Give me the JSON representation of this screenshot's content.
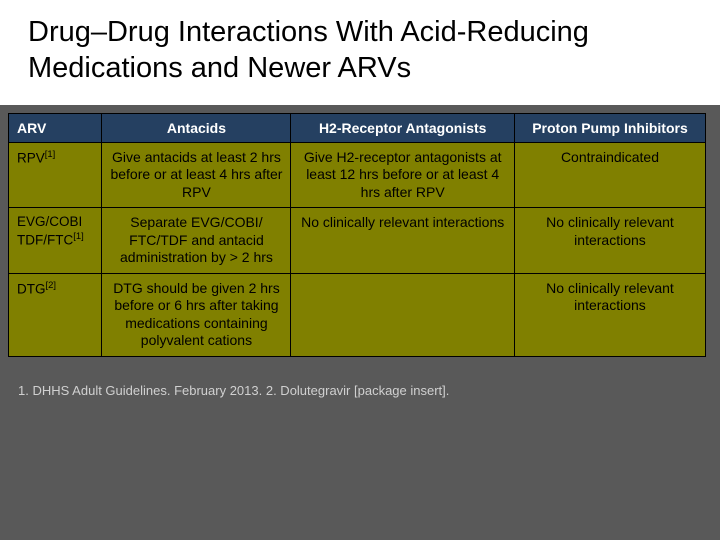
{
  "title": "Drug–Drug Interactions With Acid-Reducing Medications and Newer ARVs",
  "table": {
    "headers": {
      "arv": "ARV",
      "antacids": "Antacids",
      "h2": "H2-Receptor Antagonists",
      "ppi": "Proton Pump Inhibitors"
    },
    "rows": [
      {
        "arv_html": "RPV<sup>[1]</sup>",
        "antacids": "Give antacids at least 2 hrs before or at least 4 hrs after RPV",
        "h2": "Give H2-receptor antagonists at least 12 hrs before or at least 4 hrs after RPV",
        "ppi": "Contraindicated"
      },
      {
        "arv_html": "EVG/COBI TDF/FTC<sup>[1]</sup>",
        "antacids": "Separate EVG/COBI/ FTC/TDF and antacid administration by > 2 hrs",
        "h2": "No clinically relevant interactions",
        "ppi": "No clinically relevant interactions"
      },
      {
        "arv_html": "DTG<sup>[2]</sup>",
        "antacids": "DTG should be given 2 hrs before or 6 hrs after taking medications containing polyvalent cations",
        "h2": "",
        "ppi": "No clinically relevant interactions"
      }
    ]
  },
  "footnote": "1. DHHS Adult Guidelines. February 2013. 2. Dolutegravir [package insert].",
  "colors": {
    "page_bg": "#595959",
    "title_bg": "#ffffff",
    "header_bg": "#254061",
    "header_fg": "#ffffff",
    "cell_bg": "#808000",
    "cell_fg": "#000000",
    "footnote_fg": "#d0d0d0"
  },
  "fonts": {
    "title_pt": 29,
    "header_pt": 14,
    "cell_pt": 14,
    "footnote_pt": 13
  }
}
